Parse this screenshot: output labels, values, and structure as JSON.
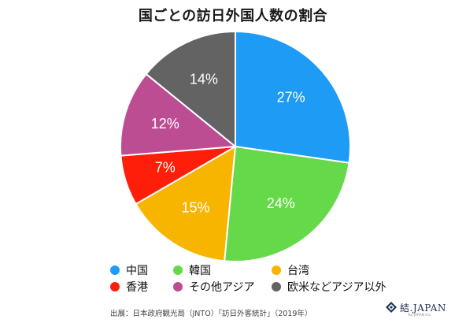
{
  "chart_data": {
    "type": "pie",
    "title": "国ごとの訪日外国人数の割合",
    "slices": [
      {
        "name": "中国",
        "value": 27,
        "label": "27%",
        "color": "#1e9bf5"
      },
      {
        "name": "韓国",
        "value": 24,
        "label": "24%",
        "color": "#66d94a"
      },
      {
        "name": "台湾",
        "value": 15,
        "label": "15%",
        "color": "#f7b500"
      },
      {
        "name": "香港",
        "value": 7,
        "label": "7%",
        "color": "#ff1e0a"
      },
      {
        "name": "その他アジア",
        "value": 12,
        "label": "12%",
        "color": "#bd4d93"
      },
      {
        "name": "欧米などアジア以外",
        "value": 14,
        "label": "14%",
        "color": "#636363"
      }
    ],
    "legend_order": [
      "中国",
      "韓国",
      "台湾",
      "香港",
      "その他アジア",
      "欧米などアジア以外"
    ],
    "legend_placement": "bottom"
  },
  "source": "出展：日本政府観光局（JNTO）「訪日外客統計」（2019年）",
  "logo": {
    "text": "結.JAPAN",
    "sub": "Yui JAPAN Inc."
  }
}
